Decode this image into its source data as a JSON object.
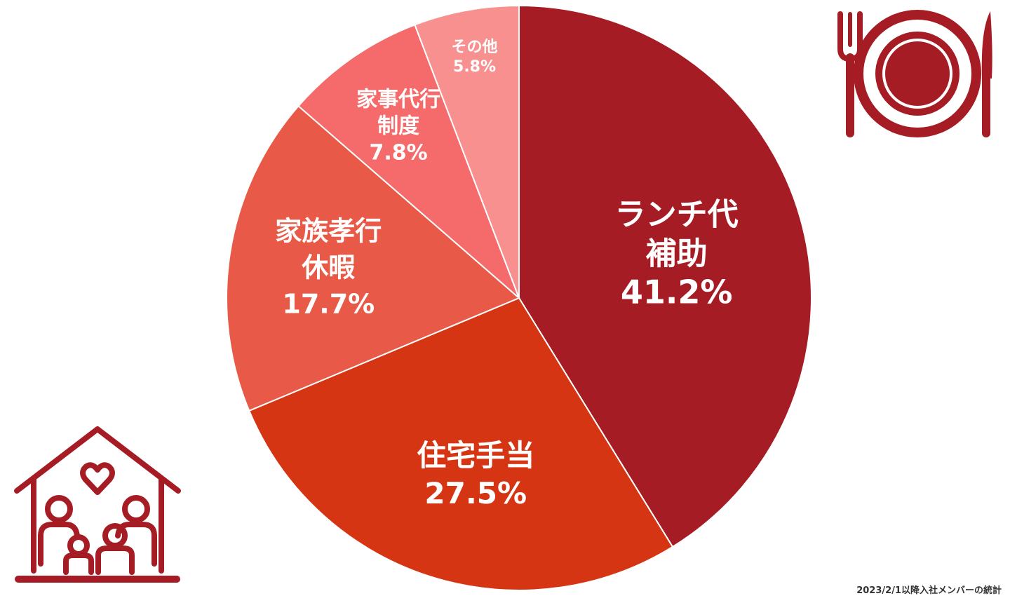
{
  "chart_data": {
    "type": "pie",
    "slices": [
      {
        "label_lines": [
          "ランチ代",
          "補助"
        ],
        "value": 41.2,
        "value_text": "41.2%",
        "color": "#A61C24"
      },
      {
        "label_lines": [
          "住宅手当"
        ],
        "value": 27.5,
        "value_text": "27.5%",
        "color": "#D63514"
      },
      {
        "label_lines": [
          "家族孝行",
          "休暇"
        ],
        "value": 17.7,
        "value_text": "17.7%",
        "color": "#E85A47"
      },
      {
        "label_lines": [
          "家事代行",
          "制度"
        ],
        "value": 7.8,
        "value_text": "7.8%",
        "color": "#F56B6B"
      },
      {
        "label_lines": [
          "その他"
        ],
        "value": 5.8,
        "value_text": "5.8%",
        "color": "#F99090"
      }
    ],
    "start": "12 o'clock",
    "direction": "clockwise"
  },
  "icons": {
    "top_right": "fork-plate-knife-icon",
    "bottom_left": "family-house-heart-icon",
    "icon_color": "#A61C24"
  },
  "footnote": "2023/2/1以降入社メンバーの統計"
}
